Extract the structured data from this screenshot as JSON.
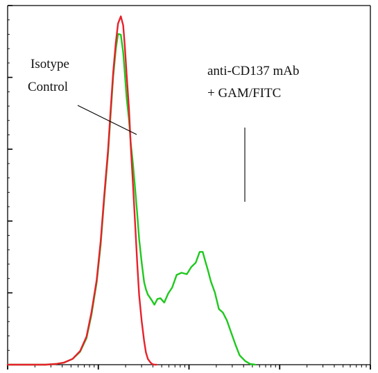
{
  "chart_data": {
    "type": "line",
    "title": "",
    "xlabel": "",
    "ylabel": "",
    "x_scale": "log",
    "xlim": [
      1,
      10000
    ],
    "ylim": [
      0,
      100
    ],
    "grid": false,
    "series": [
      {
        "color": "#e8202a",
        "x": [
          1,
          1.8,
          2.6,
          3.4,
          4.2,
          5.2,
          6.3,
          7.4,
          8.4,
          9.6,
          10.6,
          11.6,
          12.8,
          13.7,
          14.6,
          15.6,
          16.5,
          17.7,
          18.8,
          19.6,
          20.5,
          21.8,
          22.8,
          24.1,
          25.5,
          26.9,
          28.2,
          30.1,
          32.0,
          33.5,
          35.2,
          37.6,
          39.2,
          41.5,
          43.7
        ],
        "y": [
          0,
          0,
          0,
          0.2,
          0.6,
          1.6,
          3.8,
          7.8,
          14.5,
          23.6,
          34.3,
          46.9,
          59.8,
          71.2,
          81.4,
          89.7,
          95.0,
          97.0,
          94.5,
          88.6,
          81.0,
          71.2,
          61.0,
          50.3,
          39.0,
          28.1,
          19.4,
          12.1,
          6.6,
          3.4,
          1.6,
          0.6,
          0.2,
          0,
          0
        ]
      },
      {
        "color": "#1ec81e",
        "x": [
          1,
          1.8,
          2.6,
          3.4,
          4.2,
          5.2,
          6.3,
          7.4,
          8.4,
          9.6,
          10.6,
          11.6,
          12.8,
          13.7,
          14.6,
          15.6,
          16.5,
          17.7,
          18.8,
          19.6,
          20.5,
          21.8,
          22.8,
          24.1,
          25.5,
          26.9,
          28.2,
          30.1,
          32.0,
          33.5,
          35.2,
          36.4,
          38.9,
          41.5,
          44.9,
          48.5,
          53.3,
          59.0,
          65.3,
          73.1,
          82.8,
          94.6,
          105.9,
          118.6,
          131.2,
          141.7,
          151.3,
          161.6,
          174.3,
          193.0,
          213.7,
          236.6,
          261.9,
          290.1,
          326.9,
          361.9,
          416.8,
          473.5,
          537.4
        ],
        "y": [
          0,
          0,
          0,
          0.2,
          0.6,
          1.6,
          3.6,
          7.4,
          13.8,
          22.9,
          33.3,
          45.9,
          58.8,
          69.9,
          80.2,
          87.9,
          92.1,
          91.9,
          87.0,
          81.0,
          74.4,
          68.1,
          61.8,
          55.9,
          48.8,
          41.9,
          35.0,
          28.4,
          23.0,
          21.0,
          19.5,
          19.0,
          17.9,
          16.7,
          18.3,
          18.5,
          17.3,
          19.8,
          21.5,
          25.0,
          25.6,
          25.2,
          27.2,
          28.4,
          31.4,
          31.4,
          28.8,
          26.3,
          23.2,
          20.1,
          15.5,
          14.5,
          12.3,
          9.1,
          5.4,
          2.6,
          1.0,
          0.2,
          0
        ]
      }
    ],
    "annotations": {
      "isotype_line1": "Isotype",
      "isotype_line2": "Control",
      "antibody_line1": "anti-CD137 mAb",
      "antibody_line2": "+ GAM/FITC"
    }
  }
}
